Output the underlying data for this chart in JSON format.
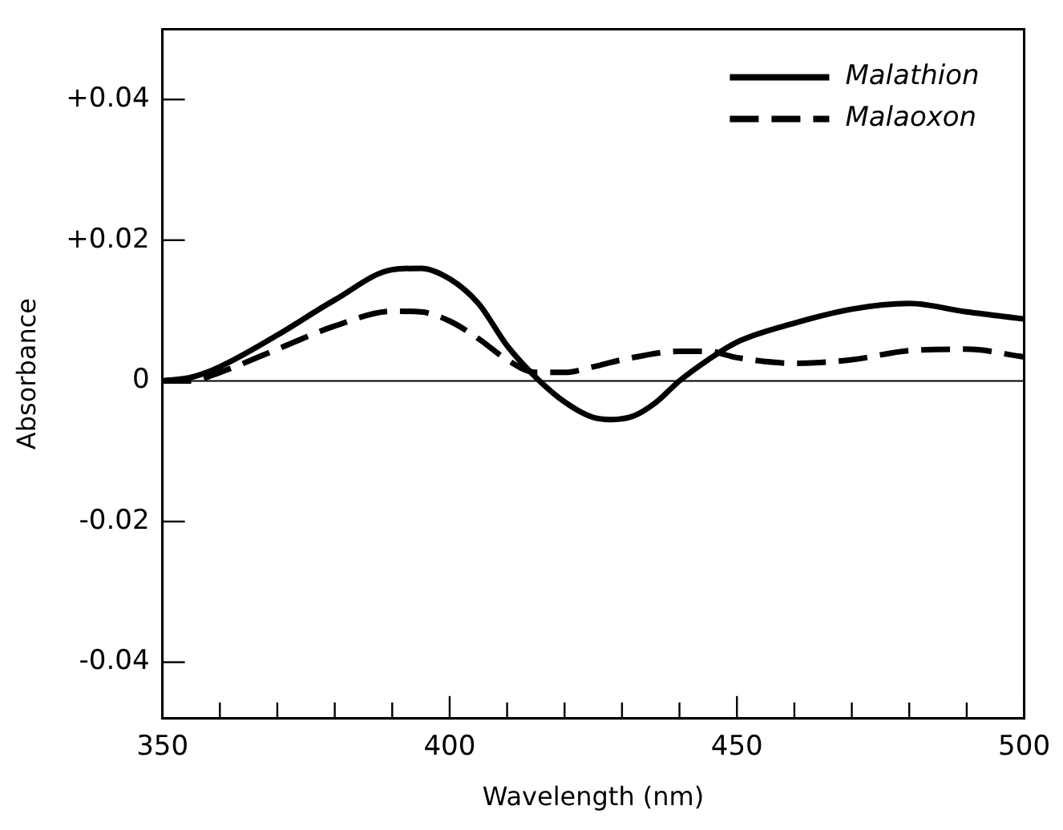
{
  "chart_data": {
    "type": "line",
    "xlabel": "Wavelength (nm)",
    "ylabel": "Absorbance",
    "xlim": [
      350,
      500
    ],
    "xticks": [
      350,
      {
        "value": 360,
        "label": null
      },
      {
        "value": 370,
        "label": null
      },
      {
        "value": 380,
        "label": null
      },
      {
        "value": 390,
        "label": null
      },
      400,
      {
        "value": 410,
        "label": null
      },
      {
        "value": 420,
        "label": null
      },
      {
        "value": 430,
        "label": null
      },
      {
        "value": 440,
        "label": null
      },
      450,
      {
        "value": 460,
        "label": null
      },
      {
        "value": 470,
        "label": null
      },
      {
        "value": 480,
        "label": null
      },
      {
        "value": 490,
        "label": null
      },
      500
    ],
    "ylim": [
      -0.048,
      0.05
    ],
    "yticks": [
      {
        "value": 0.04,
        "label": "+0.04"
      },
      {
        "value": 0.02,
        "label": "+0.02"
      },
      0,
      -0.02,
      -0.04
    ],
    "series": [
      {
        "name": "Malathion",
        "color": "#000000",
        "line_style": "solid",
        "x": [
          350,
          355,
          360,
          370,
          380,
          390,
          395,
          400,
          405,
          410,
          415,
          420,
          425,
          428,
          432,
          436,
          440,
          445,
          450,
          460,
          470,
          480,
          490,
          500
        ],
        "values": [
          0,
          0.0005,
          0.002,
          0.0065,
          0.0115,
          0.0158,
          0.016,
          0.0145,
          0.011,
          0.005,
          0.0005,
          -0.003,
          -0.0052,
          -0.0055,
          -0.005,
          -0.003,
          0,
          0.003,
          0.0055,
          0.0082,
          0.0102,
          0.011,
          0.0098,
          0.0088
        ]
      },
      {
        "name": "Malaoxon",
        "color": "#000000",
        "line_style": "dashed",
        "x": [
          350,
          355,
          360,
          370,
          380,
          390,
          395,
          400,
          405,
          410,
          415,
          420,
          425,
          430,
          440,
          445,
          450,
          460,
          470,
          480,
          490,
          500
        ],
        "values": [
          0,
          0,
          0.0012,
          0.0045,
          0.0078,
          0.0099,
          0.0098,
          0.0085,
          0.006,
          0.003,
          0.0012,
          0.0012,
          0.002,
          0.003,
          0.0042,
          0.0042,
          0.0033,
          0.0025,
          0.003,
          0.0043,
          0.0045,
          0.0034
        ]
      }
    ],
    "ref_lines": [
      {
        "axis": "y",
        "value": 0,
        "color": "#000000"
      }
    ],
    "grid": false,
    "legend": "top right",
    "marker": "none"
  }
}
